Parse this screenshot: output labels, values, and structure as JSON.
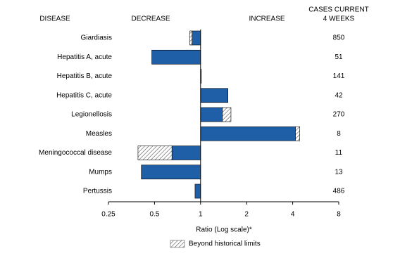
{
  "chart_data": {
    "type": "bar",
    "orientation": "horizontal",
    "headers": {
      "disease": "DISEASE",
      "decrease": "DECREASE",
      "increase": "INCREASE",
      "cases": [
        "CASES CURRENT",
        "4 WEEKS"
      ]
    },
    "categories": [
      "Giardiasis",
      "Hepatitis A, acute",
      "Hepatitis B, acute",
      "Hepatitis C, acute",
      "Legionellosis",
      "Measles",
      "Meningococcal disease",
      "Mumps",
      "Pertussis"
    ],
    "values": [
      0.85,
      0.48,
      1.01,
      1.51,
      1.58,
      4.45,
      0.39,
      0.41,
      0.92
    ],
    "color": "#1f5fa8",
    "cases": [
      850,
      51,
      141,
      42,
      270,
      8,
      11,
      13,
      486
    ],
    "beyond_historical_limits": {
      "label": "Beyond historical limits",
      "from": [
        0.88,
        null,
        null,
        null,
        1.39,
        4.17,
        0.65,
        null,
        null
      ]
    },
    "xlabel": "Ratio (Log scale)*",
    "log_scale": true,
    "xlim": [
      0.25,
      8
    ],
    "xticks": [
      0.25,
      0.5,
      1,
      2,
      4,
      8
    ]
  }
}
